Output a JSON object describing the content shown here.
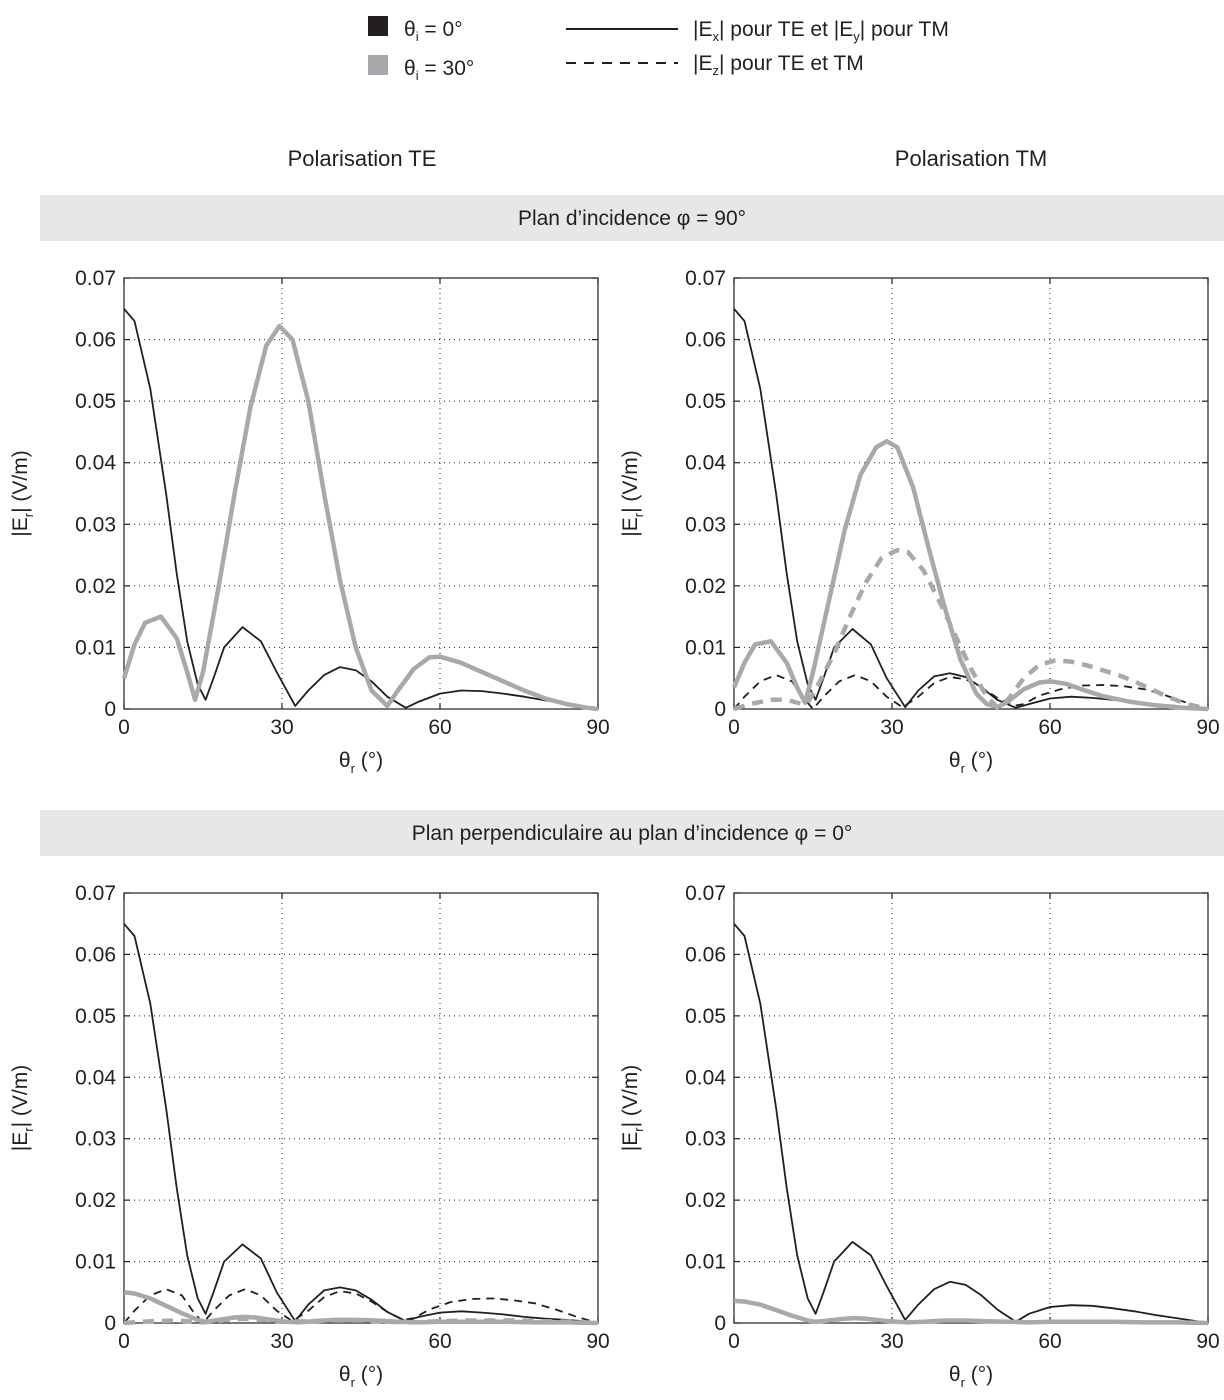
{
  "legend": {
    "colors": [
      {
        "symbol": "θ",
        "sub": "i",
        "rest": " = 0°",
        "color": "#231f20"
      },
      {
        "symbol": "θ",
        "sub": "i",
        "rest": " = 30°",
        "color": "#a7a9ac"
      }
    ],
    "styles": [
      {
        "parts": [
          [
            "|E",
            ""
          ],
          [
            "x",
            "sub"
          ],
          [
            "| pour TE  et  |E",
            ""
          ],
          [
            "y",
            "sub"
          ],
          [
            "| pour TM",
            ""
          ]
        ],
        "dash": "solid"
      },
      {
        "parts": [
          [
            "|E",
            ""
          ],
          [
            "z",
            "sub"
          ],
          [
            "| pour TE et TM",
            ""
          ]
        ],
        "dash": "dashed"
      }
    ]
  },
  "column_titles": [
    "Polarisation TE",
    "Polarisation TM"
  ],
  "bands": [
    "Plan d’incidence  φ = 90°",
    "Plan perpendiculaire au plan d’incidence  φ = 0°"
  ],
  "axes": {
    "xlabel": {
      "main": "θ",
      "sub": "r",
      "rest": " (°)"
    },
    "ylabel": {
      "pre": "|E",
      "sub": "r",
      "post": "| (V/m)"
    },
    "xticks": [
      "0",
      "30",
      "60",
      "90"
    ],
    "yticks": [
      "0",
      "0.01",
      "0.02",
      "0.03",
      "0.04",
      "0.05",
      "0.06",
      "0.07"
    ]
  },
  "colors": {
    "black": "#231f20",
    "gray": "#a7a9ac",
    "band": "#e6e7e8"
  },
  "chart_data": [
    {
      "id": "te-phi90",
      "type": "line",
      "xlim": [
        0,
        90
      ],
      "ylim": [
        0,
        0.07
      ],
      "grid": true,
      "series": [
        {
          "color": "black",
          "dash": "solid",
          "x": [
            0,
            2,
            5,
            8,
            10,
            12,
            14,
            15.5,
            17,
            19,
            22.5,
            26,
            29,
            32.5,
            35,
            38,
            41,
            44,
            47,
            50,
            53.5,
            56,
            60,
            64,
            68,
            72,
            76,
            80,
            84,
            87,
            90
          ],
          "y": [
            0.065,
            0.063,
            0.052,
            0.035,
            0.022,
            0.011,
            0.004,
            0.0015,
            0.005,
            0.01,
            0.0133,
            0.011,
            0.006,
            0.0005,
            0.003,
            0.0055,
            0.0068,
            0.0063,
            0.0045,
            0.002,
            0.0002,
            0.0012,
            0.0025,
            0.003,
            0.0029,
            0.0025,
            0.002,
            0.0014,
            0.0009,
            0.0004,
            0
          ]
        },
        {
          "color": "gray",
          "dash": "solid",
          "x": [
            0,
            2,
            4,
            7,
            10,
            12,
            13.5,
            15,
            18,
            21,
            24,
            27,
            29.5,
            32,
            35,
            38,
            41,
            44,
            47,
            50,
            52,
            55,
            58,
            60,
            64,
            68,
            72,
            76,
            80,
            84,
            88,
            90
          ],
          "y": [
            0.005,
            0.0105,
            0.014,
            0.015,
            0.0115,
            0.006,
            0.0015,
            0.006,
            0.02,
            0.035,
            0.049,
            0.059,
            0.0622,
            0.06,
            0.05,
            0.035,
            0.021,
            0.01,
            0.003,
            0.0005,
            0.003,
            0.0065,
            0.0084,
            0.0085,
            0.0075,
            0.006,
            0.0045,
            0.003,
            0.0017,
            0.0008,
            0.0002,
            0
          ]
        }
      ]
    },
    {
      "id": "tm-phi90",
      "type": "line",
      "xlim": [
        0,
        90
      ],
      "ylim": [
        0,
        0.07
      ],
      "grid": true,
      "series": [
        {
          "color": "black",
          "dash": "solid",
          "x": [
            0,
            2,
            5,
            8,
            10,
            12,
            14,
            15.5,
            17,
            19,
            22.5,
            26,
            29,
            32.5,
            35,
            38,
            41,
            44,
            47,
            50,
            53.5,
            56,
            60,
            64,
            68,
            72,
            76,
            80,
            84,
            87,
            90
          ],
          "y": [
            0.065,
            0.063,
            0.052,
            0.035,
            0.022,
            0.011,
            0.004,
            0.0015,
            0.005,
            0.01,
            0.013,
            0.0105,
            0.005,
            0.0003,
            0.003,
            0.0053,
            0.0058,
            0.0052,
            0.0035,
            0.0015,
            0.0002,
            0.0008,
            0.0017,
            0.002,
            0.0018,
            0.0015,
            0.0011,
            0.0008,
            0.0005,
            0.0002,
            0
          ]
        },
        {
          "color": "black",
          "dash": "dashed",
          "x": [
            0,
            2,
            5,
            8,
            11,
            13,
            15,
            17,
            20,
            23,
            26,
            29,
            32,
            35,
            38,
            41,
            44,
            47,
            50,
            53,
            55,
            58,
            62,
            66,
            70,
            74,
            78,
            82,
            86,
            90
          ],
          "y": [
            0,
            0.002,
            0.0045,
            0.0055,
            0.0045,
            0.002,
            0,
            0.002,
            0.0045,
            0.0055,
            0.0045,
            0.002,
            0.0003,
            0.002,
            0.0042,
            0.0052,
            0.0048,
            0.0035,
            0.0018,
            0.0005,
            0.0008,
            0.0022,
            0.0032,
            0.0038,
            0.0039,
            0.0037,
            0.0032,
            0.0022,
            0.001,
            0
          ]
        },
        {
          "color": "gray",
          "dash": "solid",
          "x": [
            0,
            2,
            4,
            7,
            10,
            12,
            13.5,
            15,
            18,
            21,
            24,
            27,
            29,
            31,
            34,
            37,
            40,
            43,
            46,
            48,
            50,
            52,
            55,
            58,
            60,
            63,
            66,
            70,
            75,
            80,
            85,
            90
          ],
          "y": [
            0.0035,
            0.0075,
            0.0105,
            0.011,
            0.0075,
            0.0035,
            0.001,
            0.006,
            0.0175,
            0.029,
            0.038,
            0.0425,
            0.0435,
            0.0425,
            0.036,
            0.026,
            0.0165,
            0.008,
            0.0025,
            0.0008,
            0.0003,
            0.0012,
            0.0032,
            0.0043,
            0.0045,
            0.0041,
            0.0032,
            0.0021,
            0.0012,
            0.0006,
            0.0002,
            0
          ]
        },
        {
          "color": "gray",
          "dash": "dashed",
          "x": [
            0,
            3,
            7,
            10,
            13,
            14,
            16,
            19,
            22,
            25,
            28,
            31,
            33,
            36,
            39,
            42,
            45,
            48,
            50,
            52,
            55,
            58,
            61,
            64,
            67,
            70,
            73,
            76,
            79,
            82,
            86,
            90
          ],
          "y": [
            0,
            0.0008,
            0.0015,
            0.0015,
            0.0008,
            0.001,
            0.004,
            0.009,
            0.015,
            0.0205,
            0.0245,
            0.0258,
            0.0255,
            0.0225,
            0.0175,
            0.012,
            0.0065,
            0.002,
            0.0003,
            0.0015,
            0.005,
            0.0072,
            0.0079,
            0.0077,
            0.0071,
            0.0063,
            0.0055,
            0.0045,
            0.0033,
            0.0021,
            0.0008,
            0
          ]
        }
      ]
    },
    {
      "id": "te-phi0",
      "type": "line",
      "xlim": [
        0,
        90
      ],
      "ylim": [
        0,
        0.07
      ],
      "grid": true,
      "series": [
        {
          "color": "black",
          "dash": "solid",
          "x": [
            0,
            2,
            5,
            8,
            10,
            12,
            14,
            15.5,
            17,
            19,
            22.5,
            26,
            29,
            32.5,
            35,
            38,
            41,
            44,
            47,
            50,
            53.5,
            56,
            60,
            64,
            68,
            72,
            76,
            80,
            84,
            87,
            90
          ],
          "y": [
            0.065,
            0.063,
            0.052,
            0.035,
            0.022,
            0.011,
            0.004,
            0.0015,
            0.005,
            0.01,
            0.0128,
            0.0105,
            0.005,
            0.0003,
            0.003,
            0.0053,
            0.0058,
            0.0053,
            0.0038,
            0.0018,
            0.0003,
            0.001,
            0.0017,
            0.0019,
            0.0017,
            0.0014,
            0.001,
            0.0007,
            0.0005,
            0.0003,
            0
          ]
        },
        {
          "color": "black",
          "dash": "dashed",
          "x": [
            0,
            2,
            5,
            8,
            11,
            13,
            15,
            17,
            20,
            23,
            26,
            29,
            32,
            35,
            38,
            41,
            44,
            47,
            50,
            53,
            55,
            58,
            62,
            66,
            70,
            74,
            78,
            82,
            86,
            90
          ],
          "y": [
            0,
            0.002,
            0.0045,
            0.0055,
            0.0045,
            0.002,
            0,
            0.002,
            0.0045,
            0.0055,
            0.0045,
            0.002,
            0.0003,
            0.002,
            0.0042,
            0.0052,
            0.0048,
            0.0035,
            0.0018,
            0.0005,
            0.0008,
            0.0022,
            0.0034,
            0.0039,
            0.004,
            0.0037,
            0.0032,
            0.0022,
            0.001,
            0
          ]
        },
        {
          "color": "gray",
          "dash": "solid",
          "x": [
            0,
            2,
            5,
            8,
            11,
            14,
            15.5,
            18,
            21,
            23,
            25,
            28,
            31,
            33,
            36,
            40,
            44,
            48,
            52,
            56,
            60,
            66,
            72,
            78,
            84,
            90
          ],
          "y": [
            0.005,
            0.0048,
            0.004,
            0.0028,
            0.0016,
            0.0005,
            0.0002,
            0.0005,
            0.0009,
            0.001,
            0.0009,
            0.0005,
            0.0002,
            0.0001,
            0.0003,
            0.0005,
            0.0005,
            0.0004,
            0.0002,
            0.0001,
            0.0002,
            0.0002,
            0.0002,
            0.0001,
            0.0001,
            0
          ]
        },
        {
          "color": "gray",
          "dash": "dashed",
          "x": [
            0,
            5,
            10,
            15,
            20,
            23,
            26,
            30,
            35,
            40,
            45,
            50,
            55,
            60,
            65,
            70,
            75,
            80,
            85,
            90
          ],
          "y": [
            0,
            0.0003,
            0.0004,
            0.0001,
            0.0005,
            0.0007,
            0.0005,
            0.0002,
            0.0003,
            0.0004,
            0.0004,
            0.0002,
            0.0001,
            0.0003,
            0.0004,
            0.0004,
            0.0004,
            0.0003,
            0.0002,
            0
          ]
        }
      ]
    },
    {
      "id": "tm-phi0",
      "type": "line",
      "xlim": [
        0,
        90
      ],
      "ylim": [
        0,
        0.07
      ],
      "grid": true,
      "series": [
        {
          "color": "black",
          "dash": "solid",
          "x": [
            0,
            2,
            5,
            8,
            10,
            12,
            14,
            15.5,
            17,
            19,
            22.5,
            26,
            29,
            32.5,
            35,
            38,
            41,
            44,
            47,
            50,
            53.5,
            56,
            60,
            64,
            68,
            72,
            76,
            80,
            84,
            87,
            90
          ],
          "y": [
            0.065,
            0.063,
            0.052,
            0.035,
            0.022,
            0.011,
            0.004,
            0.0015,
            0.005,
            0.01,
            0.0132,
            0.011,
            0.006,
            0.0005,
            0.003,
            0.0055,
            0.0067,
            0.0062,
            0.0045,
            0.0022,
            0.0002,
            0.0015,
            0.0026,
            0.0029,
            0.0028,
            0.0024,
            0.0019,
            0.0013,
            0.0008,
            0.0004,
            0
          ]
        },
        {
          "color": "gray",
          "dash": "solid",
          "x": [
            0,
            2,
            5,
            8,
            11,
            14,
            15.5,
            18,
            21,
            23,
            25,
            28,
            31,
            33,
            36,
            40,
            44,
            48,
            52,
            56,
            60,
            66,
            72,
            78,
            84,
            90
          ],
          "y": [
            0.0036,
            0.0035,
            0.003,
            0.0021,
            0.0012,
            0.0004,
            0.0002,
            0.0004,
            0.0007,
            0.0008,
            0.0007,
            0.0004,
            0.0002,
            0.0001,
            0.0002,
            0.0004,
            0.0004,
            0.0003,
            0.0002,
            0.0001,
            0.0002,
            0.0002,
            0.0002,
            0.0001,
            0.0001,
            0
          ]
        }
      ]
    }
  ]
}
